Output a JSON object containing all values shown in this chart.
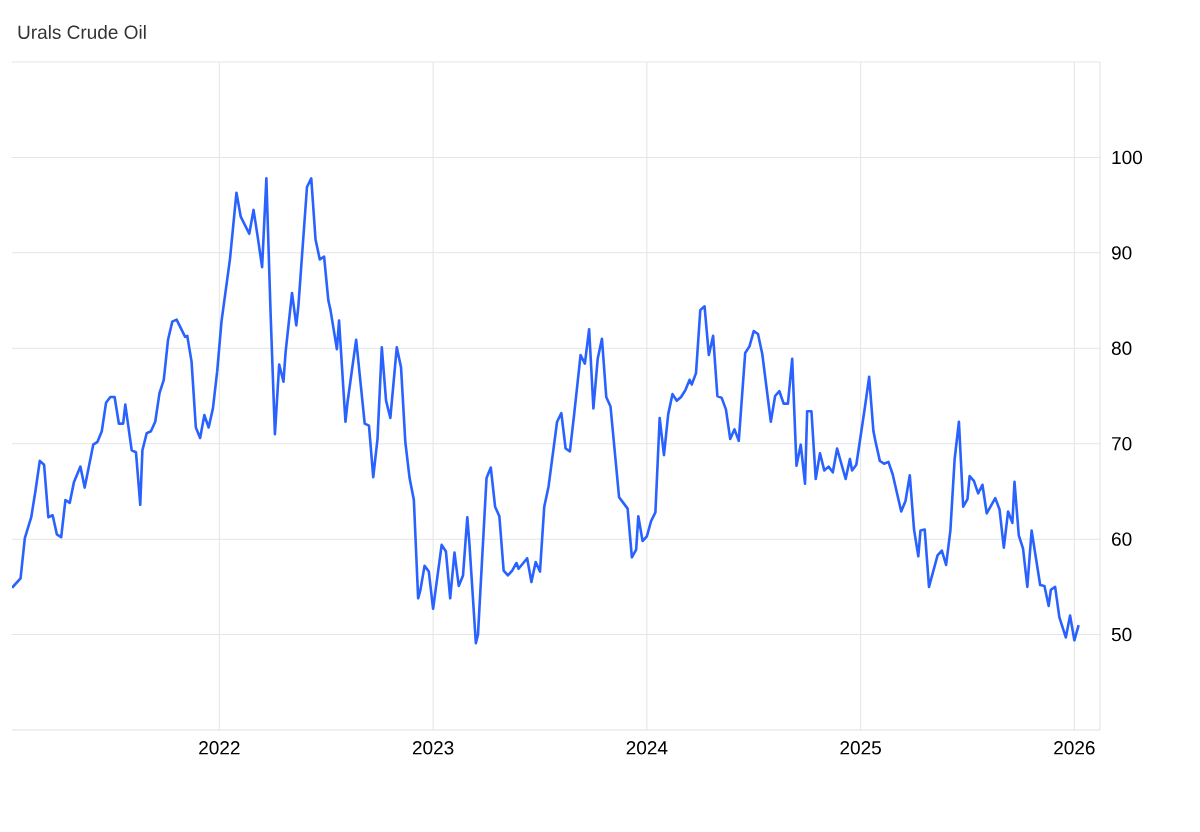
{
  "chart_data": {
    "type": "line",
    "title": "Urals Crude Oil",
    "x": [
      2021.03,
      2021.07,
      2021.09,
      2021.12,
      2021.14,
      2021.16,
      2021.18,
      2021.2,
      2021.22,
      2021.24,
      2021.26,
      2021.28,
      2021.3,
      2021.32,
      2021.35,
      2021.37,
      2021.41,
      2021.43,
      2021.45,
      2021.47,
      2021.49,
      2021.51,
      2021.53,
      2021.55,
      2021.56,
      2021.59,
      2021.61,
      2021.63,
      2021.64,
      2021.66,
      2021.68,
      2021.7,
      2021.72,
      2021.74,
      2021.76,
      2021.78,
      2021.8,
      2021.84,
      2021.85,
      2021.87,
      2021.89,
      2021.91,
      2021.93,
      2021.95,
      2021.97,
      2021.99,
      2022.01,
      2022.05,
      2022.08,
      2022.1,
      2022.14,
      2022.16,
      2022.18,
      2022.2,
      2022.22,
      2022.24,
      2022.26,
      2022.28,
      2022.3,
      2022.31,
      2022.34,
      2022.36,
      2022.37,
      2022.41,
      2022.43,
      2022.45,
      2022.47,
      2022.49,
      2022.51,
      2022.52,
      2022.55,
      2022.56,
      2022.59,
      2022.6,
      2022.64,
      2022.66,
      2022.68,
      2022.7,
      2022.72,
      2022.74,
      2022.76,
      2022.78,
      2022.8,
      2022.83,
      2022.85,
      2022.87,
      2022.89,
      2022.91,
      2022.93,
      2022.94,
      2022.96,
      2022.98,
      2023.0,
      2023.04,
      2023.06,
      2023.08,
      2023.1,
      2023.12,
      2023.14,
      2023.16,
      2023.17,
      2023.2,
      2023.21,
      2023.25,
      2023.27,
      2023.29,
      2023.31,
      2023.33,
      2023.35,
      2023.37,
      2023.39,
      2023.4,
      2023.44,
      2023.46,
      2023.48,
      2023.5,
      2023.52,
      2023.54,
      2023.58,
      2023.6,
      2023.62,
      2023.64,
      2023.66,
      2023.69,
      2023.71,
      2023.73,
      2023.75,
      2023.77,
      2023.79,
      2023.81,
      2023.83,
      2023.87,
      2023.89,
      2023.91,
      2023.93,
      2023.95,
      2023.96,
      2023.98,
      2024.0,
      2024.02,
      2024.04,
      2024.06,
      2024.08,
      2024.1,
      2024.12,
      2024.14,
      2024.16,
      2024.18,
      2024.2,
      2024.21,
      2024.23,
      2024.25,
      2024.27,
      2024.29,
      2024.31,
      2024.33,
      2024.35,
      2024.37,
      2024.39,
      2024.41,
      2024.43,
      2024.46,
      2024.48,
      2024.5,
      2024.52,
      2024.54,
      2024.58,
      2024.6,
      2024.62,
      2024.64,
      2024.66,
      2024.68,
      2024.7,
      2024.72,
      2024.74,
      2024.75,
      2024.77,
      2024.79,
      2024.81,
      2024.83,
      2024.85,
      2024.87,
      2024.89,
      2024.93,
      2024.95,
      2024.96,
      2024.98,
      2025.02,
      2025.04,
      2025.06,
      2025.07,
      2025.09,
      2025.11,
      2025.13,
      2025.15,
      2025.19,
      2025.21,
      2025.23,
      2025.25,
      2025.27,
      2025.28,
      2025.3,
      2025.32,
      2025.36,
      2025.38,
      2025.4,
      2025.42,
      2025.44,
      2025.46,
      2025.48,
      2025.5,
      2025.51,
      2025.53,
      2025.55,
      2025.57,
      2025.59,
      2025.63,
      2025.65,
      2025.67,
      2025.69,
      2025.71,
      2025.72,
      2025.74,
      2025.76,
      2025.78,
      2025.8,
      2025.84,
      2025.86,
      2025.88,
      2025.89,
      2025.91,
      2025.93,
      2025.96,
      2025.98,
      2026.0,
      2026.02
    ],
    "series": [
      {
        "color": "#2962ff",
        "values": [
          54.9,
          55.9,
          60.1,
          62.3,
          65.1,
          68.2,
          67.8,
          62.3,
          62.5,
          60.5,
          60.2,
          64.1,
          63.8,
          66.0,
          67.6,
          65.4,
          69.9,
          70.2,
          71.3,
          74.3,
          74.9,
          74.9,
          72.1,
          72.1,
          74.1,
          69.3,
          69.1,
          63.6,
          69.3,
          71.1,
          71.3,
          72.3,
          75.3,
          76.7,
          80.9,
          82.8,
          83.0,
          81.2,
          81.3,
          78.6,
          71.7,
          70.6,
          73.0,
          71.7,
          73.7,
          77.6,
          82.8,
          89.4,
          96.3,
          93.8,
          92.0,
          94.5,
          91.6,
          88.5,
          97.8,
          83.5,
          71.0,
          78.3,
          76.5,
          79.6,
          85.8,
          82.4,
          84.5,
          96.9,
          97.8,
          91.4,
          89.3,
          89.6,
          85.0,
          84.0,
          79.9,
          82.9,
          72.3,
          74.4,
          80.9,
          76.5,
          72.1,
          71.9,
          66.5,
          70.5,
          80.1,
          74.5,
          72.7,
          80.1,
          78.0,
          70.2,
          66.4,
          64.1,
          53.8,
          54.6,
          57.2,
          56.6,
          52.7,
          59.4,
          58.7,
          53.8,
          58.6,
          55.1,
          56.2,
          62.3,
          59.5,
          49.1,
          50.0,
          66.4,
          67.5,
          63.4,
          62.4,
          56.7,
          56.2,
          56.7,
          57.5,
          56.9,
          58.0,
          55.5,
          57.6,
          56.6,
          63.4,
          65.5,
          72.3,
          73.2,
          69.5,
          69.2,
          73.1,
          79.3,
          78.4,
          82.0,
          73.7,
          78.9,
          81.0,
          74.9,
          73.9,
          64.4,
          63.8,
          63.2,
          58.1,
          58.9,
          62.4,
          59.8,
          60.3,
          61.9,
          62.8,
          72.7,
          68.8,
          73.1,
          75.2,
          74.5,
          74.9,
          75.6,
          76.7,
          76.2,
          77.4,
          84.0,
          84.4,
          79.3,
          81.3,
          75.0,
          74.8,
          73.6,
          70.5,
          71.5,
          70.3,
          79.5,
          80.2,
          81.8,
          81.5,
          79.4,
          72.3,
          75.0,
          75.5,
          74.2,
          74.2,
          78.9,
          67.7,
          69.9,
          65.8,
          73.4,
          73.4,
          66.3,
          69.0,
          67.2,
          67.6,
          67.0,
          69.5,
          66.3,
          68.4,
          67.2,
          67.8,
          73.8,
          77.0,
          71.3,
          70.2,
          68.2,
          67.9,
          68.1,
          66.8,
          62.9,
          64.0,
          66.7,
          61.0,
          58.2,
          60.9,
          61.0,
          55.0,
          58.3,
          58.8,
          57.3,
          60.9,
          68.4,
          72.3,
          63.4,
          64.2,
          66.6,
          66.1,
          64.8,
          65.7,
          62.7,
          64.3,
          63.1,
          59.1,
          62.9,
          61.7,
          66.0,
          60.4,
          59.0,
          55.0,
          60.9,
          55.2,
          55.1,
          53.0,
          54.7,
          55.0,
          51.8,
          49.7,
          52.0,
          49.4,
          51.0
        ]
      }
    ],
    "xlim": [
      2021.03,
      2026.12
    ],
    "xticks": [
      2022,
      2023,
      2024,
      2025,
      2026
    ],
    "ylim": [
      40,
      110
    ],
    "yticks": [
      50,
      60,
      70,
      80,
      90,
      100,
      {
        "value": 110,
        "label": null
      }
    ],
    "grid": true,
    "line_style": "solid",
    "marker": "none"
  }
}
